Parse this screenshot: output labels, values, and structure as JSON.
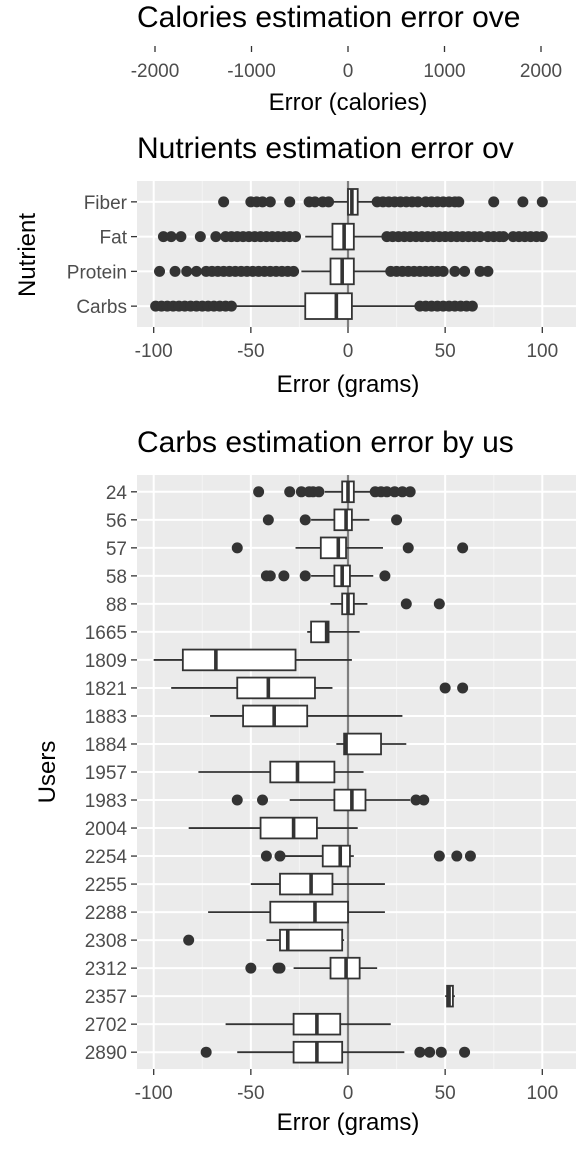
{
  "chart_data": [
    {
      "type": "box",
      "title": "Calories estimation error ove",
      "xlabel": "Error (calories)",
      "xticks": [
        -2000,
        -1000,
        0,
        1000,
        2000
      ],
      "xlim": [
        -2100,
        2100
      ],
      "categories": [],
      "series": []
    },
    {
      "type": "box",
      "title": "Nutrients estimation error ov",
      "xlabel": "Error (grams)",
      "ylabel": "Nutrient",
      "xticks": [
        -100,
        -50,
        0,
        50,
        100
      ],
      "xlim": [
        -105,
        110
      ],
      "reference_line_x": 0,
      "categories": [
        "Fiber",
        "Fat",
        "Protein",
        "Carbs"
      ],
      "series": [
        {
          "category": "Fiber",
          "q1": 0,
          "median": 2,
          "q3": 5,
          "whisker_low": -8,
          "whisker_high": 13,
          "outliers": [
            -64,
            -50,
            -47,
            -44,
            -40,
            -30,
            -20,
            -17,
            -13,
            -10,
            15,
            18,
            21,
            24,
            27,
            30,
            33,
            36,
            40,
            43,
            46,
            49,
            52,
            55,
            57,
            75,
            90,
            100
          ]
        },
        {
          "category": "Fat",
          "q1": -8,
          "median": -2,
          "q3": 3,
          "whisker_low": -22,
          "whisker_high": 18,
          "outliers": [
            -95,
            -91,
            -86,
            -76,
            -68,
            -63,
            -60,
            -57,
            -54,
            -51,
            -48,
            -45,
            -42,
            -39,
            -36,
            -33,
            -30,
            -27,
            20,
            23,
            26,
            29,
            32,
            35,
            38,
            41,
            44,
            47,
            50,
            53,
            56,
            59,
            62,
            65,
            68,
            72,
            75,
            78,
            80,
            85,
            88,
            91,
            94,
            97,
            100
          ]
        },
        {
          "category": "Protein",
          "q1": -9,
          "median": -3,
          "q3": 3,
          "whisker_low": -24,
          "whisker_high": 20,
          "outliers": [
            -97,
            -89,
            -83,
            -78,
            -73,
            -70,
            -67,
            -64,
            -61,
            -58,
            -55,
            -52,
            -49,
            -46,
            -43,
            -40,
            -37,
            -34,
            -31,
            -28,
            22,
            25,
            28,
            31,
            34,
            37,
            40,
            43,
            46,
            49,
            55,
            60,
            68,
            72
          ]
        },
        {
          "category": "Carbs",
          "q1": -22,
          "median": -6,
          "q3": 2,
          "whisker_low": -58,
          "whisker_high": 36,
          "outliers": [
            -99,
            -96,
            -93,
            -90,
            -87,
            -84,
            -81,
            -78,
            -75,
            -72,
            -69,
            -66,
            -63,
            -60,
            37,
            40,
            43,
            46,
            49,
            52,
            55,
            58,
            61,
            64
          ]
        }
      ]
    },
    {
      "type": "box",
      "title": "Carbs estimation error by us",
      "xlabel": "Error (grams)",
      "ylabel": "Users",
      "xticks": [
        -100,
        -50,
        0,
        50,
        100
      ],
      "xlim": [
        -105,
        110
      ],
      "reference_line_x": 0,
      "categories": [
        "24",
        "56",
        "57",
        "58",
        "88",
        "1665",
        "1809",
        "1821",
        "1883",
        "1884",
        "1957",
        "1983",
        "2004",
        "2254",
        "2255",
        "2288",
        "2308",
        "2312",
        "2357",
        "2702",
        "2890"
      ],
      "series": [
        {
          "category": "24",
          "q1": -3,
          "median": 0,
          "q3": 3,
          "whisker_low": -12,
          "whisker_high": 13,
          "outliers": [
            -46,
            -30,
            -24,
            -20,
            -18,
            -15,
            14,
            17,
            20,
            24,
            28,
            32
          ]
        },
        {
          "category": "56",
          "q1": -7,
          "median": -1,
          "q3": 2,
          "whisker_low": -19,
          "whisker_high": 11,
          "outliers": [
            -41,
            -22,
            25
          ]
        },
        {
          "category": "57",
          "q1": -14,
          "median": -5,
          "q3": -1,
          "whisker_low": -27,
          "whisker_high": 18,
          "outliers": [
            -57,
            31,
            59
          ]
        },
        {
          "category": "58",
          "q1": -7,
          "median": -3,
          "q3": 1,
          "whisker_low": -19,
          "whisker_high": 13,
          "outliers": [
            -42,
            -40,
            -33,
            -22,
            19
          ]
        },
        {
          "category": "88",
          "q1": -3,
          "median": 0,
          "q3": 3,
          "whisker_low": -9,
          "whisker_high": 10,
          "outliers": [
            30,
            47
          ]
        },
        {
          "category": "1665",
          "q1": -19,
          "median": -11,
          "q3": -10,
          "whisker_low": -21,
          "whisker_high": 6,
          "outliers": []
        },
        {
          "category": "1809",
          "q1": -85,
          "median": -68,
          "q3": -27,
          "whisker_low": -100,
          "whisker_high": 2,
          "outliers": []
        },
        {
          "category": "1821",
          "q1": -57,
          "median": -41,
          "q3": -17,
          "whisker_low": -91,
          "whisker_high": -8,
          "outliers": [
            50,
            59
          ]
        },
        {
          "category": "1883",
          "q1": -54,
          "median": -38,
          "q3": -21,
          "whisker_low": -71,
          "whisker_high": 28,
          "outliers": []
        },
        {
          "category": "1884",
          "q1": -2,
          "median": -1,
          "q3": 17,
          "whisker_low": -6,
          "whisker_high": 30,
          "outliers": []
        },
        {
          "category": "1957",
          "q1": -40,
          "median": -26,
          "q3": -7,
          "whisker_low": -77,
          "whisker_high": 8,
          "outliers": []
        },
        {
          "category": "1983",
          "q1": -7,
          "median": 2,
          "q3": 9,
          "whisker_low": -30,
          "whisker_high": 32,
          "outliers": [
            -57,
            -44,
            35,
            39
          ]
        },
        {
          "category": "2004",
          "q1": -45,
          "median": -28,
          "q3": -16,
          "whisker_low": -82,
          "whisker_high": 5,
          "outliers": []
        },
        {
          "category": "2254",
          "q1": -13,
          "median": -4,
          "q3": 1,
          "whisker_low": -35,
          "whisker_high": 3,
          "outliers": [
            -42,
            -35,
            47,
            56,
            63
          ]
        },
        {
          "category": "2255",
          "q1": -35,
          "median": -19,
          "q3": -8,
          "whisker_low": -50,
          "whisker_high": 19,
          "outliers": []
        },
        {
          "category": "2288",
          "q1": -40,
          "median": -17,
          "q3": 0,
          "whisker_low": -72,
          "whisker_high": 19,
          "outliers": []
        },
        {
          "category": "2308",
          "q1": -35,
          "median": -31,
          "q3": -3,
          "whisker_low": -42,
          "whisker_high": -2,
          "outliers": [
            -82
          ]
        },
        {
          "category": "2312",
          "q1": -9,
          "median": -1,
          "q3": 6,
          "whisker_low": -28,
          "whisker_high": 15,
          "outliers": [
            -50,
            -36,
            -35
          ]
        },
        {
          "category": "2357",
          "q1": 51,
          "median": 52,
          "q3": 54,
          "whisker_low": 50,
          "whisker_high": 55,
          "outliers": []
        },
        {
          "category": "2702",
          "q1": -28,
          "median": -16,
          "q3": -4,
          "whisker_low": -63,
          "whisker_high": 22,
          "outliers": []
        },
        {
          "category": "2890",
          "q1": -28,
          "median": -16,
          "q3": -3,
          "whisker_low": -57,
          "whisker_high": 29,
          "outliers": [
            -73,
            37,
            42,
            48,
            60
          ]
        }
      ]
    }
  ]
}
